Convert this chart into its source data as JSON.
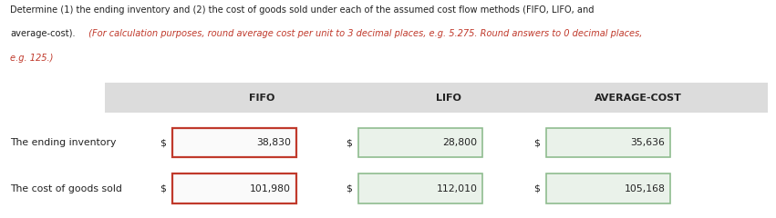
{
  "title_line1": "Determine (1) the ending inventory and (2) the cost of goods sold under each of the assumed cost flow methods (FIFO, LIFO, and",
  "title_line2_normal": "average-cost).",
  "title_line2_italic": " (For calculation purposes, round average cost per unit to 3 decimal places, e.g. 5.275. Round answers to 0 decimal places,",
  "title_line3_italic": "e.g. 125.)",
  "header_bg": "#dcdcdc",
  "header_labels": [
    "FIFO",
    "LIFO",
    "AVERAGE-COST"
  ],
  "row_labels": [
    "The ending inventory",
    "The cost of goods sold"
  ],
  "fifo_values": [
    "38,830",
    "101,980"
  ],
  "lifo_values": [
    "28,800",
    "112,010"
  ],
  "avg_values": [
    "35,636",
    "105,168"
  ],
  "fifo_box_edge": "#c0392b",
  "lifo_box_edge": "#8fbc8f",
  "avg_box_edge": "#8fbc8f",
  "box_fill_fifo": "#fafafa",
  "box_fill_other": "#eaf2ea",
  "text_color": "#222222",
  "red_color": "#c0392b",
  "bg_color": "#ffffff"
}
